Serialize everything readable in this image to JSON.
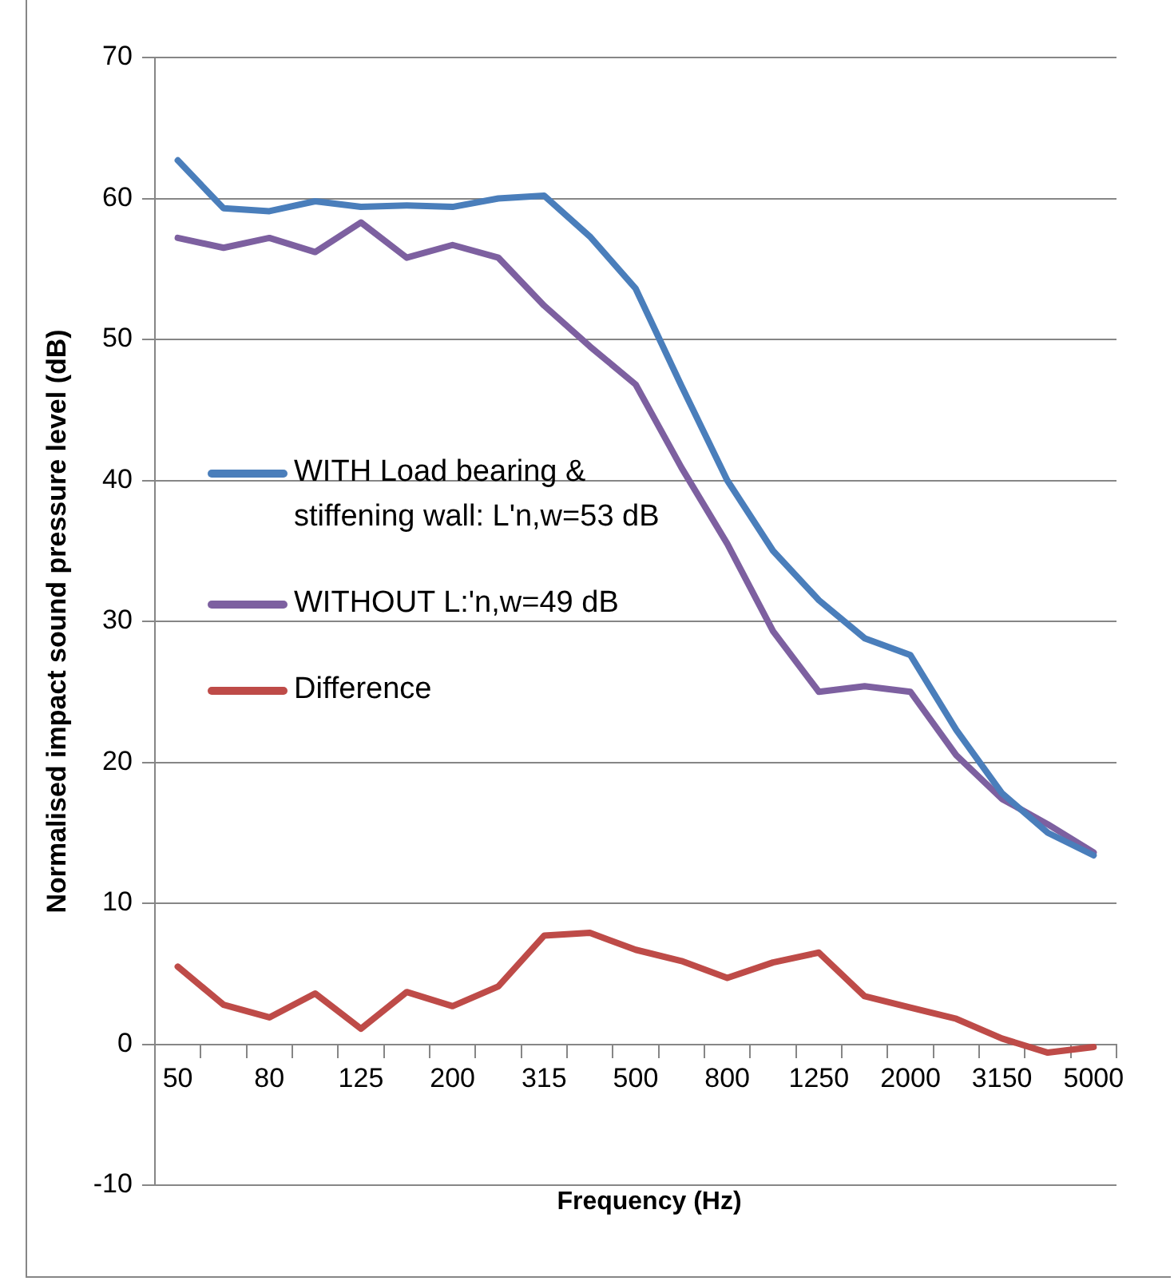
{
  "chart_data": {
    "type": "line",
    "xlabel": "Frequency (Hz)",
    "ylabel": "Normalised impact sound pressure level (dB)",
    "categories": [
      "50",
      null,
      "80",
      null,
      "125",
      null,
      "200",
      null,
      "315",
      null,
      "500",
      null,
      "800",
      null,
      "1250",
      null,
      "2000",
      null,
      "3150",
      null,
      "5000"
    ],
    "series": [
      {
        "name": "WITH Load bearing & stiffening wall: L'n,w=53 dB",
        "color": "#4a7ebb",
        "values": [
          62.7,
          59.3,
          59.1,
          59.8,
          59.4,
          59.5,
          59.4,
          60.0,
          60.2,
          57.3,
          53.6,
          46.7,
          40.0,
          35.0,
          31.5,
          28.8,
          27.6,
          22.3,
          17.8,
          15.0,
          13.4
        ]
      },
      {
        "name": "WITHOUT L:'n,w=49 dB",
        "color": "#7d60a0",
        "values": [
          57.2,
          56.5,
          57.2,
          56.2,
          58.3,
          55.8,
          56.7,
          55.8,
          52.4,
          49.5,
          46.8,
          40.9,
          35.5,
          29.3,
          25.0,
          25.4,
          25.0,
          20.5,
          17.4,
          15.6,
          13.6
        ]
      },
      {
        "name": "Difference",
        "color": "#be4b48",
        "values": [
          5.5,
          2.8,
          1.9,
          3.6,
          1.1,
          3.7,
          2.7,
          4.1,
          7.7,
          7.9,
          6.7,
          5.9,
          4.7,
          5.8,
          6.5,
          3.4,
          2.6,
          1.8,
          0.4,
          -0.6,
          -0.2
        ]
      }
    ],
    "ylim": [
      -10,
      70
    ],
    "yticks": [
      -10,
      0,
      10,
      20,
      30,
      40,
      50,
      60,
      70
    ],
    "grid": "y",
    "legend": "left",
    "marker": "none",
    "line_style": "solid"
  }
}
